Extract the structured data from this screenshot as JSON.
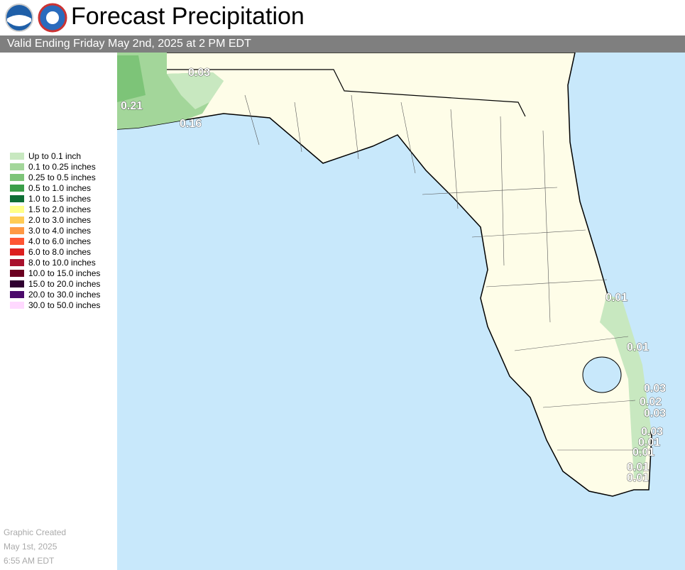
{
  "header": {
    "title": "Forecast Precipitation",
    "subtitle": "Valid Ending Friday May 2nd, 2025 at 2 PM EDT"
  },
  "legend": [
    {
      "label": "Up to 0.1 inch",
      "color": "#c8e8c0"
    },
    {
      "label": "0.1 to 0.25 inches",
      "color": "#a3d69a"
    },
    {
      "label": "0.25 to 0.5 inches",
      "color": "#7dc478"
    },
    {
      "label": "0.5 to 1.0 inches",
      "color": "#3a9e48"
    },
    {
      "label": "1.0 to 1.5 inches",
      "color": "#0e6e35"
    },
    {
      "label": "1.5 to 2.0 inches",
      "color": "#ffff88"
    },
    {
      "label": "2.0 to 3.0 inches",
      "color": "#ffcc55"
    },
    {
      "label": "3.0 to 4.0 inches",
      "color": "#ff9944"
    },
    {
      "label": "4.0 to 6.0 inches",
      "color": "#ff5533"
    },
    {
      "label": "6.0 to 8.0 inches",
      "color": "#dd1f1f"
    },
    {
      "label": "8.0 to 10.0 inches",
      "color": "#a8102c"
    },
    {
      "label": "10.0 to 15.0 inches",
      "color": "#6b0020"
    },
    {
      "label": "15.0 to 20.0 inches",
      "color": "#2f0030"
    },
    {
      "label": "20.0 to 30.0 inches",
      "color": "#4b0a6b"
    },
    {
      "label": "30.0 to 50.0 inches",
      "color": "#ffd9ff"
    }
  ],
  "map_labels": [
    "0.03",
    "0.21",
    "0.16",
    "0.01",
    "0.01",
    "0.03",
    "0.02",
    "0.03",
    "0.03",
    "0.01",
    "0.01",
    "0.01",
    "0.01"
  ],
  "footer": [
    "Graphic Created",
    "May 1st, 2025",
    "6:55 AM EDT"
  ]
}
